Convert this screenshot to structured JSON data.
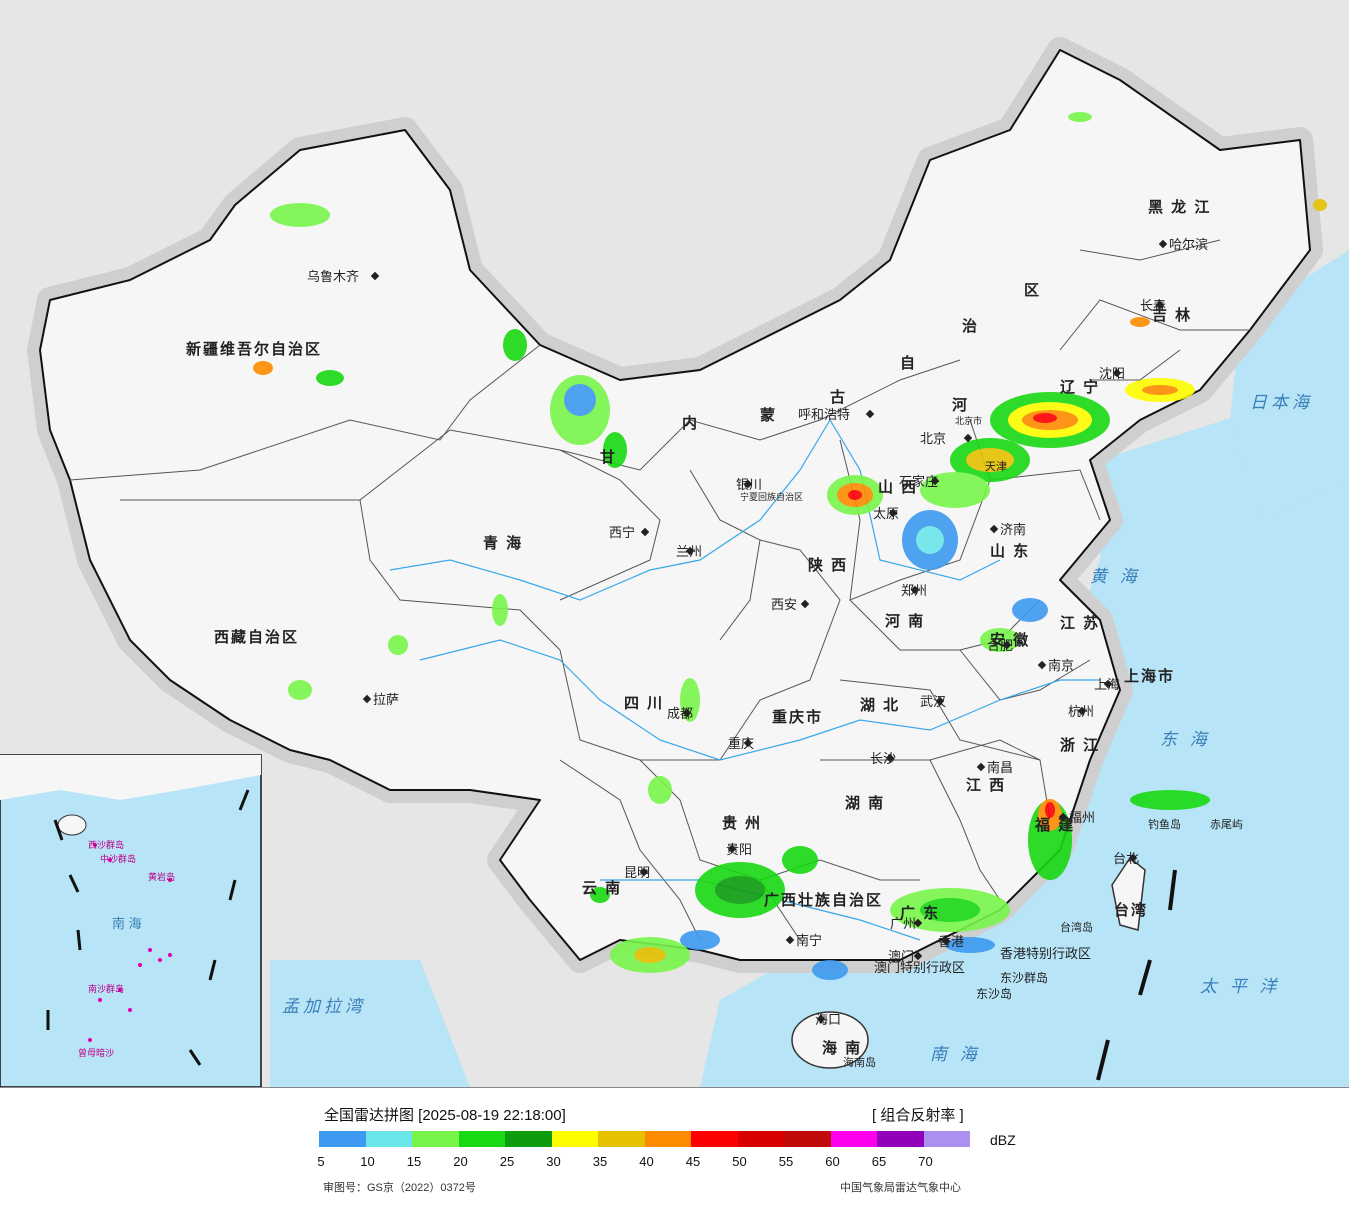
{
  "provinces": {
    "xinjiang": "新疆维吾尔自治区",
    "xizang": "西藏自治区",
    "qinghai": "青  海",
    "gansu": "甘",
    "neimenggu": [
      "内",
      "蒙",
      "古",
      "自",
      "治",
      "区"
    ],
    "heilongjiang": "黑  龙  江",
    "jilin": "吉  林",
    "liaoning": "辽  宁",
    "hebei": "河",
    "shanxi": "山  西",
    "shaanxi": "陕  西",
    "shandong": "山  东",
    "henan": "河  南",
    "jiangsu": "江  苏",
    "anhui": "安  徽",
    "shanghai": "上海市",
    "zhejiang": "浙  江",
    "hubei": "湖  北",
    "sichuan": "四  川",
    "chongqing": "重庆市",
    "hunan": "湖  南",
    "jiangxi": "江  西",
    "fujian": "福  建",
    "guizhou": "贵  州",
    "yunnan": "云  南",
    "guangxi": "广西壮族自治区",
    "guangdong": "广  东",
    "hainan": "海  南",
    "taiwan": "台湾",
    "ningxia": "宁夏回族自治区",
    "tianjin": "天津",
    "beijing": "北京市"
  },
  "cities": [
    {
      "name": "乌鲁木齐"
    },
    {
      "name": "拉萨"
    },
    {
      "name": "西宁"
    },
    {
      "name": "兰州"
    },
    {
      "name": "银川"
    },
    {
      "name": "呼和浩特"
    },
    {
      "name": "北京"
    },
    {
      "name": "石家庄"
    },
    {
      "name": "太原"
    },
    {
      "name": "济南"
    },
    {
      "name": "郑州"
    },
    {
      "name": "西安"
    },
    {
      "name": "成都"
    },
    {
      "name": "重庆"
    },
    {
      "name": "武汉"
    },
    {
      "name": "合肥"
    },
    {
      "name": "南京"
    },
    {
      "name": "上海"
    },
    {
      "name": "杭州"
    },
    {
      "name": "南昌"
    },
    {
      "name": "长沙"
    },
    {
      "name": "贵阳"
    },
    {
      "name": "昆明"
    },
    {
      "name": "南宁"
    },
    {
      "name": "广州"
    },
    {
      "name": "澳门"
    },
    {
      "name": "香港"
    },
    {
      "name": "福州"
    },
    {
      "name": "台北"
    },
    {
      "name": "海口"
    },
    {
      "name": "沈阳"
    },
    {
      "name": "长春"
    },
    {
      "name": "哈尔滨"
    }
  ],
  "places": {
    "hk_sar": "香港特别行政区",
    "macau_sar": "澳门特别行政区",
    "dongsha": "东沙群岛",
    "dongsha2": "东沙岛",
    "taiwan_island": "台湾岛",
    "hainan_island": "海南岛",
    "diaoyu": "钓鱼岛",
    "chiwei": "赤尾屿"
  },
  "seas": {
    "japan_sea": "日本海",
    "yellow_sea": "黄  海",
    "east_sea": "东  海",
    "pacific": "太  平  洋",
    "south_sea": "南     海",
    "bengal": "孟加拉湾"
  },
  "inset": {
    "south_sea": "南  海",
    "zhongsha": "中沙群岛",
    "nansha": "南沙群岛",
    "xisha": "西沙群岛",
    "huangyan": "黄岩岛",
    "zengmu": "曾母暗沙"
  },
  "legend": {
    "title": "全国雷达拼图 [2025-08-19 22:18:00]",
    "product": "[ 组合反射率 ]",
    "unit": "dBZ",
    "ticks": [
      "5",
      "10",
      "15",
      "20",
      "25",
      "30",
      "35",
      "40",
      "45",
      "50",
      "55",
      "60",
      "65",
      "70"
    ],
    "colors": [
      "#3d9af0",
      "#6ae6ea",
      "#78f54a",
      "#18d912",
      "#0c9c0e",
      "#fdfd00",
      "#e5c100",
      "#fd8b00",
      "#fd0000",
      "#d90000",
      "#c10a0a",
      "#ff00ee",
      "#9300bb",
      "#ad8ff0"
    ],
    "approval": "审图号：GS京（2022）0372号",
    "source": "中国气象局雷达气象中心"
  },
  "colors": {
    "ocean": "#b7e4f7",
    "land": "#f6f6f6",
    "foreign": "#e6e6e6"
  }
}
